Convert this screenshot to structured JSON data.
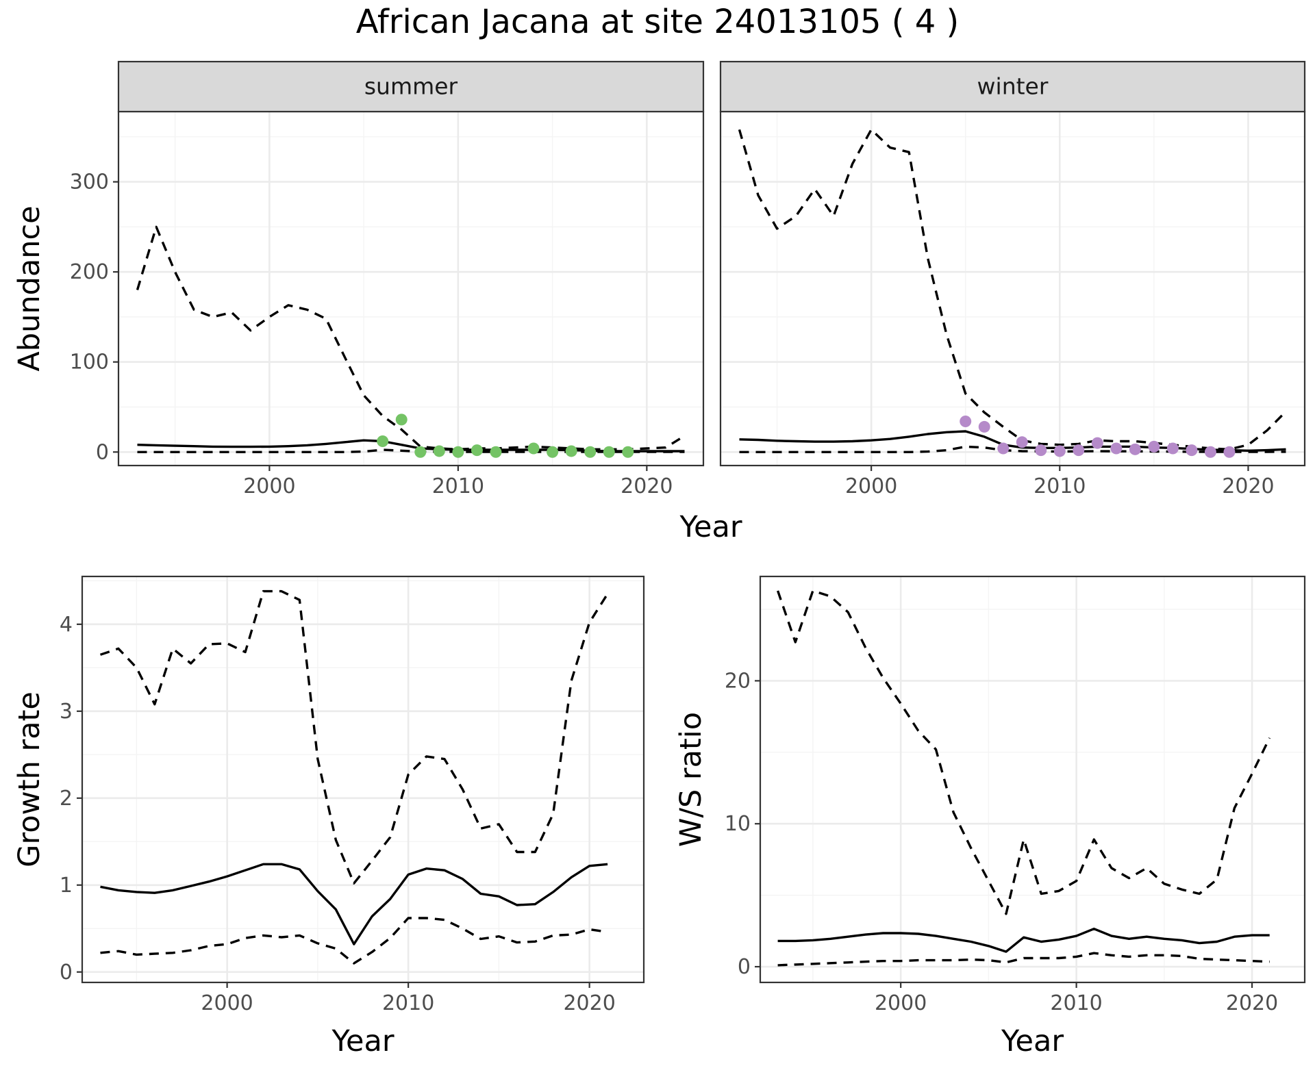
{
  "title": "African Jacana at site 24013105 ( 4 )",
  "colors": {
    "summer_points": "#74c365",
    "winter_points": "#b58ac9",
    "lines": "#000000"
  },
  "chart_data": [
    {
      "type": "line",
      "panel": "summer",
      "strip": "summer",
      "xlabel": "",
      "ylabel": "Abundance",
      "xlim": [
        1992,
        2023
      ],
      "ylim": [
        -15,
        378
      ],
      "xticks": [
        2000,
        2010,
        2020
      ],
      "yticks": [
        0,
        100,
        200,
        300
      ],
      "x": [
        1993,
        1994,
        1995,
        1996,
        1997,
        1998,
        1999,
        2000,
        2001,
        2002,
        2003,
        2004,
        2005,
        2006,
        2007,
        2008,
        2009,
        2010,
        2011,
        2012,
        2013,
        2014,
        2015,
        2016,
        2017,
        2018,
        2019,
        2020,
        2021,
        2022
      ],
      "series": [
        {
          "role": "mean",
          "style": "solid",
          "values": [
            8,
            7.5,
            7,
            6.5,
            6,
            5.8,
            5.8,
            6,
            6.5,
            7.5,
            9,
            11,
            13,
            12,
            8,
            4,
            3,
            2.5,
            2.5,
            2.5,
            2.5,
            2.5,
            2.5,
            2,
            1.5,
            1,
            1,
            1,
            1,
            1
          ]
        },
        {
          "role": "upper",
          "style": "dashed",
          "values": [
            180,
            250,
            200,
            158,
            150,
            155,
            135,
            150,
            163,
            158,
            148,
            105,
            63,
            40,
            25,
            6,
            4,
            3,
            4,
            4,
            5,
            6,
            5,
            4,
            3,
            3,
            3,
            4,
            5,
            18
          ]
        },
        {
          "role": "lower",
          "style": "dashed",
          "values": [
            0,
            0,
            0,
            0,
            0,
            0,
            0,
            0,
            0,
            0,
            0,
            0,
            0.5,
            2.5,
            1.5,
            0.5,
            0.3,
            0.2,
            0.2,
            0.2,
            0.2,
            0.2,
            0.2,
            0.2,
            0.1,
            0.1,
            0.1,
            0.1,
            0.1,
            0.1
          ]
        }
      ],
      "points": {
        "x": [
          2006,
          2007,
          2008,
          2009,
          2010,
          2011,
          2012,
          2014,
          2015,
          2016,
          2017,
          2018,
          2019
        ],
        "y": [
          12,
          36,
          0,
          1,
          0,
          2,
          0,
          4,
          0,
          1,
          0,
          0,
          0
        ]
      }
    },
    {
      "type": "line",
      "panel": "winter",
      "strip": "winter",
      "xlabel": "",
      "ylabel": "",
      "xlim": [
        1992,
        2023
      ],
      "ylim": [
        -15,
        378
      ],
      "xticks": [
        2000,
        2010,
        2020
      ],
      "yticks": [
        0,
        100,
        200,
        300
      ],
      "x": [
        1993,
        1994,
        1995,
        1996,
        1997,
        1998,
        1999,
        2000,
        2001,
        2002,
        2003,
        2004,
        2005,
        2006,
        2007,
        2008,
        2009,
        2010,
        2011,
        2012,
        2013,
        2014,
        2015,
        2016,
        2017,
        2018,
        2019,
        2020,
        2021,
        2022
      ],
      "series": [
        {
          "role": "mean",
          "style": "solid",
          "values": [
            14,
            13.5,
            12.5,
            12,
            11.5,
            11.5,
            12,
            13,
            14.5,
            17,
            20,
            22,
            23,
            17,
            8,
            5,
            4.5,
            4.5,
            5,
            6,
            6,
            6,
            5,
            4.5,
            3.5,
            2.5,
            2,
            1.5,
            2,
            3
          ]
        },
        {
          "role": "upper",
          "style": "dashed",
          "values": [
            358,
            285,
            248,
            262,
            292,
            262,
            320,
            358,
            338,
            333,
            215,
            130,
            65,
            44,
            28,
            13,
            9,
            8,
            9,
            13,
            12,
            12,
            10,
            8,
            6,
            4,
            3,
            8,
            24,
            45
          ]
        },
        {
          "role": "lower",
          "style": "dashed",
          "values": [
            0,
            0,
            0,
            0,
            0,
            0,
            0,
            0,
            0,
            0,
            0.5,
            2,
            6,
            5,
            2,
            1,
            0.8,
            0.5,
            0.8,
            1,
            0.8,
            0.8,
            0.6,
            0.5,
            0.3,
            0.2,
            0.1,
            0.1,
            0.2,
            0.3
          ]
        }
      ],
      "points": {
        "x": [
          2005,
          2006,
          2007,
          2008,
          2009,
          2010,
          2011,
          2012,
          2013,
          2014,
          2015,
          2016,
          2017,
          2018,
          2019
        ],
        "y": [
          34,
          28,
          4,
          11,
          2,
          1,
          2,
          10,
          4,
          3,
          6,
          4,
          2,
          0,
          0
        ]
      }
    },
    {
      "type": "line",
      "panel": "growth",
      "xlabel": "Year",
      "ylabel": "Growth rate",
      "xlim": [
        1992,
        2023
      ],
      "ylim": [
        -0.12,
        4.55
      ],
      "xticks": [
        2000,
        2010,
        2020
      ],
      "yticks": [
        0,
        1,
        2,
        3,
        4
      ],
      "x": [
        1993,
        1994,
        1995,
        1996,
        1997,
        1998,
        1999,
        2000,
        2001,
        2002,
        2003,
        2004,
        2005,
        2006,
        2007,
        2008,
        2009,
        2010,
        2011,
        2012,
        2013,
        2014,
        2015,
        2016,
        2017,
        2018,
        2019,
        2020,
        2021
      ],
      "series": [
        {
          "role": "mean",
          "style": "solid",
          "values": [
            0.98,
            0.94,
            0.92,
            0.91,
            0.94,
            0.99,
            1.04,
            1.1,
            1.17,
            1.24,
            1.24,
            1.18,
            0.93,
            0.72,
            0.32,
            0.64,
            0.84,
            1.12,
            1.19,
            1.17,
            1.07,
            0.9,
            0.87,
            0.77,
            0.78,
            0.92,
            1.09,
            1.22,
            1.24
          ]
        },
        {
          "role": "upper",
          "style": "dashed",
          "values": [
            3.65,
            3.72,
            3.5,
            3.08,
            3.72,
            3.55,
            3.77,
            3.78,
            3.68,
            4.38,
            4.38,
            4.28,
            2.45,
            1.52,
            1.02,
            1.28,
            1.55,
            2.27,
            2.48,
            2.45,
            2.1,
            1.65,
            1.7,
            1.38,
            1.38,
            1.82,
            3.35,
            4.02,
            4.35
          ]
        },
        {
          "role": "lower",
          "style": "dashed",
          "values": [
            0.22,
            0.24,
            0.2,
            0.21,
            0.22,
            0.25,
            0.3,
            0.32,
            0.39,
            0.42,
            0.4,
            0.42,
            0.33,
            0.27,
            0.1,
            0.23,
            0.39,
            0.62,
            0.62,
            0.6,
            0.5,
            0.38,
            0.41,
            0.34,
            0.35,
            0.42,
            0.43,
            0.49,
            0.46
          ]
        }
      ]
    },
    {
      "type": "line",
      "panel": "ws_ratio",
      "xlabel": "Year",
      "ylabel": "W/S ratio",
      "xlim": [
        1992,
        2023
      ],
      "ylim": [
        -1.1,
        27.3
      ],
      "xticks": [
        2000,
        2010,
        2020
      ],
      "yticks": [
        0,
        10,
        20
      ],
      "x": [
        1993,
        1994,
        1995,
        1996,
        1997,
        1998,
        1999,
        2000,
        2001,
        2002,
        2003,
        2004,
        2005,
        2006,
        2007,
        2008,
        2009,
        2010,
        2011,
        2012,
        2013,
        2014,
        2015,
        2016,
        2017,
        2018,
        2019,
        2020,
        2021
      ],
      "series": [
        {
          "role": "mean",
          "style": "solid",
          "values": [
            1.8,
            1.8,
            1.85,
            1.95,
            2.1,
            2.25,
            2.35,
            2.35,
            2.3,
            2.15,
            1.95,
            1.75,
            1.45,
            1.05,
            2.05,
            1.75,
            1.9,
            2.15,
            2.65,
            2.15,
            1.95,
            2.1,
            1.95,
            1.85,
            1.65,
            1.75,
            2.1,
            2.2,
            2.2
          ]
        },
        {
          "role": "upper",
          "style": "dashed",
          "values": [
            26.3,
            22.7,
            26.3,
            25.9,
            24.8,
            22.3,
            20.2,
            18.4,
            16.5,
            15.2,
            10.8,
            8.3,
            6,
            3.7,
            8.9,
            5.1,
            5.3,
            6,
            8.9,
            6.9,
            6.2,
            6.9,
            5.8,
            5.4,
            5.1,
            6.1,
            11.1,
            13.5,
            16
          ]
        },
        {
          "role": "lower",
          "style": "dashed",
          "values": [
            0.1,
            0.15,
            0.2,
            0.25,
            0.3,
            0.35,
            0.4,
            0.4,
            0.45,
            0.45,
            0.45,
            0.5,
            0.45,
            0.3,
            0.6,
            0.6,
            0.6,
            0.7,
            0.95,
            0.8,
            0.7,
            0.8,
            0.8,
            0.75,
            0.55,
            0.5,
            0.45,
            0.4,
            0.35
          ]
        }
      ]
    }
  ]
}
